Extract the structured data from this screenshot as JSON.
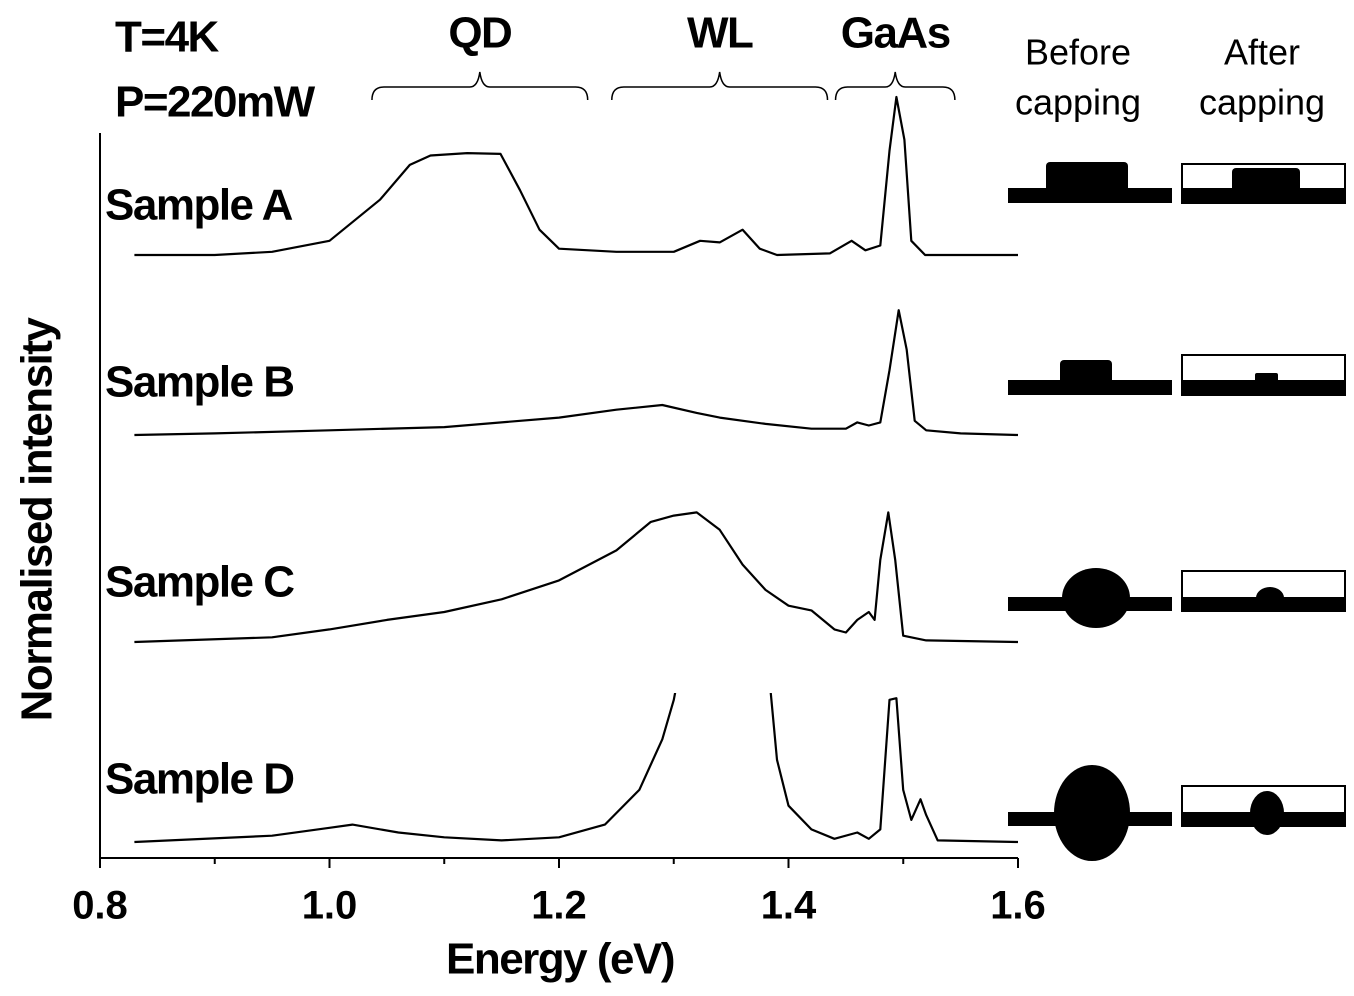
{
  "ylabel": "Normalised intensity",
  "annotations": {
    "temperature": "T=4K",
    "power": "P=220mW",
    "regions": [
      {
        "label": "QD",
        "xlim": [
          1.037,
          1.225
        ]
      },
      {
        "label": "WL",
        "xlim": [
          1.246,
          1.434
        ]
      },
      {
        "label": "GaAs",
        "xlim": [
          1.441,
          1.545
        ]
      }
    ]
  },
  "schematic": {
    "before": [
      "Before",
      "capping"
    ],
    "after": [
      "After",
      "capping"
    ]
  },
  "chart_data": [
    {
      "type": "line",
      "title": "Sample A",
      "color": "#000000",
      "ylim": [
        0,
        1
      ],
      "x": [
        0.83,
        0.9,
        0.95,
        1.0,
        1.044,
        1.07,
        1.088,
        1.12,
        1.149,
        1.166,
        1.183,
        1.2,
        1.25,
        1.3,
        1.323,
        1.34,
        1.36,
        1.375,
        1.39,
        1.436,
        1.455,
        1.467,
        1.48,
        1.488,
        1.494,
        1.501,
        1.507,
        1.519,
        1.6
      ],
      "values": [
        0,
        0,
        0.02,
        0.09,
        0.35,
        0.57,
        0.63,
        0.645,
        0.64,
        0.41,
        0.16,
        0.04,
        0.02,
        0.02,
        0.09,
        0.08,
        0.16,
        0.04,
        0,
        0.01,
        0.09,
        0.03,
        0.06,
        0.66,
        1.0,
        0.73,
        0.09,
        0,
        0
      ]
    },
    {
      "type": "line",
      "title": "Sample B",
      "color": "#000000",
      "ylim": [
        0,
        1
      ],
      "x": [
        0.83,
        0.9,
        1.0,
        1.1,
        1.2,
        1.25,
        1.29,
        1.32,
        1.34,
        1.38,
        1.42,
        1.45,
        1.46,
        1.47,
        1.48,
        1.488,
        1.496,
        1.503,
        1.51,
        1.52,
        1.55,
        1.6
      ],
      "values": [
        0,
        0.01,
        0.03,
        0.05,
        0.11,
        0.16,
        0.19,
        0.14,
        0.11,
        0.07,
        0.04,
        0.04,
        0.08,
        0.06,
        0.08,
        0.41,
        0.79,
        0.54,
        0.09,
        0.03,
        0.01,
        0
      ]
    },
    {
      "type": "line",
      "title": "Sample C",
      "color": "#000000",
      "ylim": [
        0,
        1
      ],
      "x": [
        0.83,
        0.95,
        1.0,
        1.05,
        1.1,
        1.15,
        1.2,
        1.25,
        1.28,
        1.3,
        1.32,
        1.34,
        1.36,
        1.38,
        1.4,
        1.42,
        1.44,
        1.45,
        1.46,
        1.47,
        1.475,
        1.48,
        1.487,
        1.493,
        1.5,
        1.52,
        1.6
      ],
      "values": [
        0,
        0.03,
        0.08,
        0.14,
        0.19,
        0.27,
        0.39,
        0.58,
        0.76,
        0.8,
        0.82,
        0.71,
        0.49,
        0.33,
        0.23,
        0.2,
        0.08,
        0.06,
        0.14,
        0.19,
        0.14,
        0.52,
        0.82,
        0.52,
        0.04,
        0.01,
        0
      ]
    },
    {
      "type": "line",
      "title": "Sample D",
      "color": "#000000",
      "ylim": [
        0,
        0.93
      ],
      "x": [
        0.83,
        0.95,
        1.0,
        1.02,
        1.06,
        1.1,
        1.15,
        1.2,
        1.24,
        1.27,
        1.29,
        1.3,
        1.31,
        1.34,
        1.38,
        1.39,
        1.4,
        1.42,
        1.44,
        1.46,
        1.47,
        1.48,
        1.488,
        1.494,
        1.5,
        1.507,
        1.515,
        1.52,
        1.53,
        1.6
      ],
      "values": [
        0,
        0.04,
        0.09,
        0.11,
        0.06,
        0.03,
        0.01,
        0.03,
        0.11,
        0.33,
        0.65,
        0.9,
        1.28,
        null,
        1.3,
        0.52,
        0.23,
        0.08,
        0.02,
        0.06,
        0.02,
        0.08,
        0.9,
        0.91,
        0.33,
        0.14,
        0.27,
        0.17,
        0.01,
        0
      ],
      "xlabel": "Energy (eV)",
      "xlim": [
        0.8,
        1.6
      ],
      "xticks": [
        0.8,
        {
          "value": 1,
          "label": "1.0"
        },
        1.2,
        1.4,
        1.6
      ],
      "xminorticks": [
        0.9,
        1.1,
        1.3,
        1.5
      ]
    }
  ]
}
